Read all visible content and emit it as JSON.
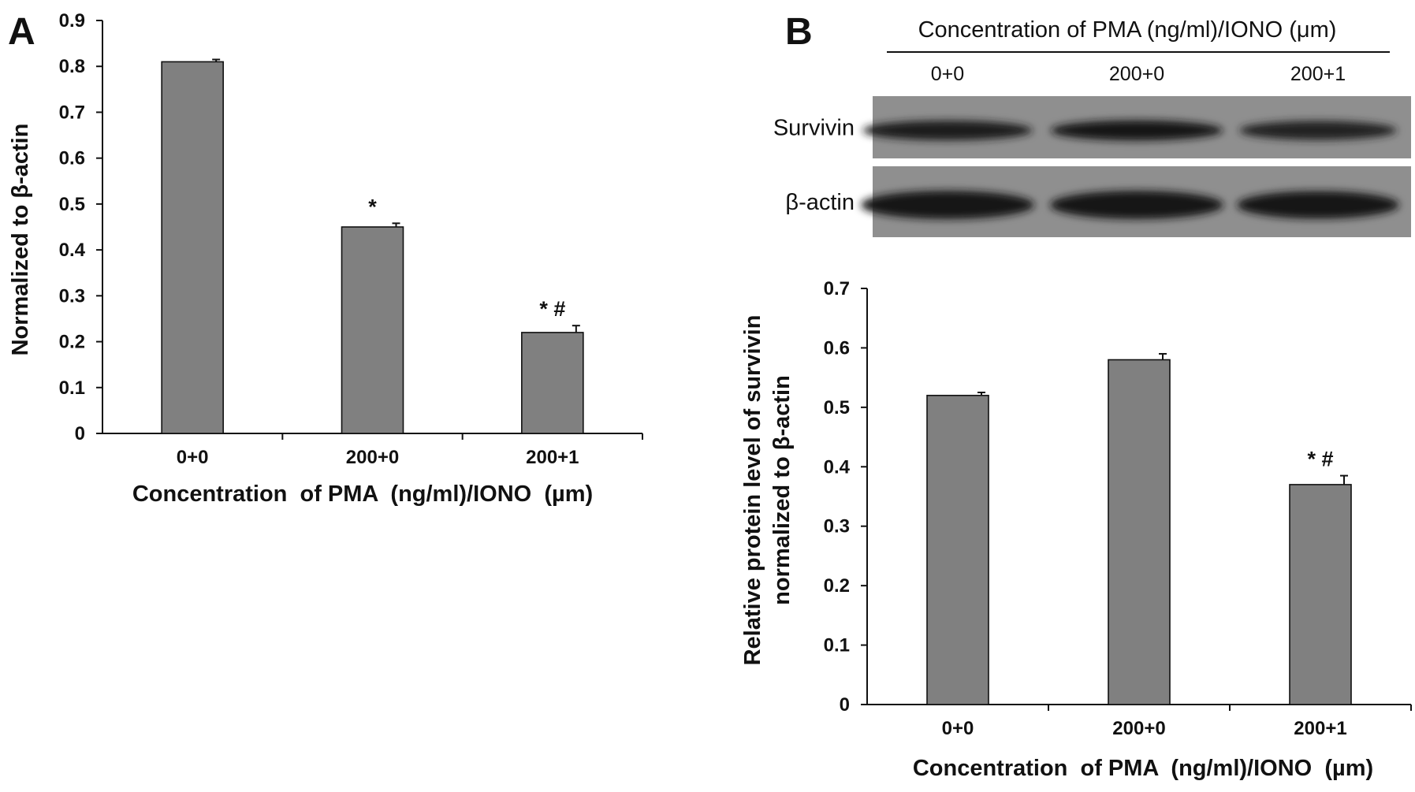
{
  "panels": {
    "a": "A",
    "b": "B"
  },
  "chart_data": [
    {
      "type": "bar",
      "categories": [
        "0+0",
        "200+0",
        "200+1"
      ],
      "values": [
        0.81,
        0.45,
        0.22
      ],
      "error": [
        0.005,
        0.008,
        0.015
      ],
      "annotations": [
        "",
        "*",
        "* #"
      ],
      "xlabel": "Concentration  of PMA  (ng/ml)/IONO  (µm)",
      "ylabel": "Normalized to β-actin",
      "ylim": [
        0,
        0.9
      ],
      "yticks": [
        "0",
        "0.1",
        "0.2",
        "0.3",
        "0.4",
        "0.5",
        "0.6",
        "0.7",
        "0.8",
        "0.9"
      ],
      "bar_color": "#808080",
      "grid": false
    },
    {
      "type": "bar",
      "categories": [
        "0+0",
        "200+0",
        "200+1"
      ],
      "values": [
        0.52,
        0.58,
        0.37
      ],
      "error": [
        0.005,
        0.01,
        0.015
      ],
      "annotations": [
        "",
        "",
        "* #"
      ],
      "xlabel": "Concentration  of PMA  (ng/ml)/IONO  (µm)",
      "ylabel_lines": [
        "Relative protein level of survivin",
        "normalized to β-actin"
      ],
      "ylim": [
        0,
        0.7
      ],
      "yticks": [
        "0",
        "0.1",
        "0.2",
        "0.3",
        "0.4",
        "0.5",
        "0.6",
        "0.7"
      ],
      "bar_color": "#808080",
      "grid": false
    }
  ],
  "blot": {
    "header": "Concentration of PMA (ng/ml)/IONO (μm)",
    "lanes": [
      "0+0",
      "200+0",
      "200+1"
    ],
    "rows": [
      {
        "label": "Survivin",
        "intensity": [
          0.85,
          0.95,
          0.7
        ]
      },
      {
        "label": "β-actin",
        "intensity": [
          1.0,
          1.0,
          0.9
        ]
      }
    ]
  }
}
